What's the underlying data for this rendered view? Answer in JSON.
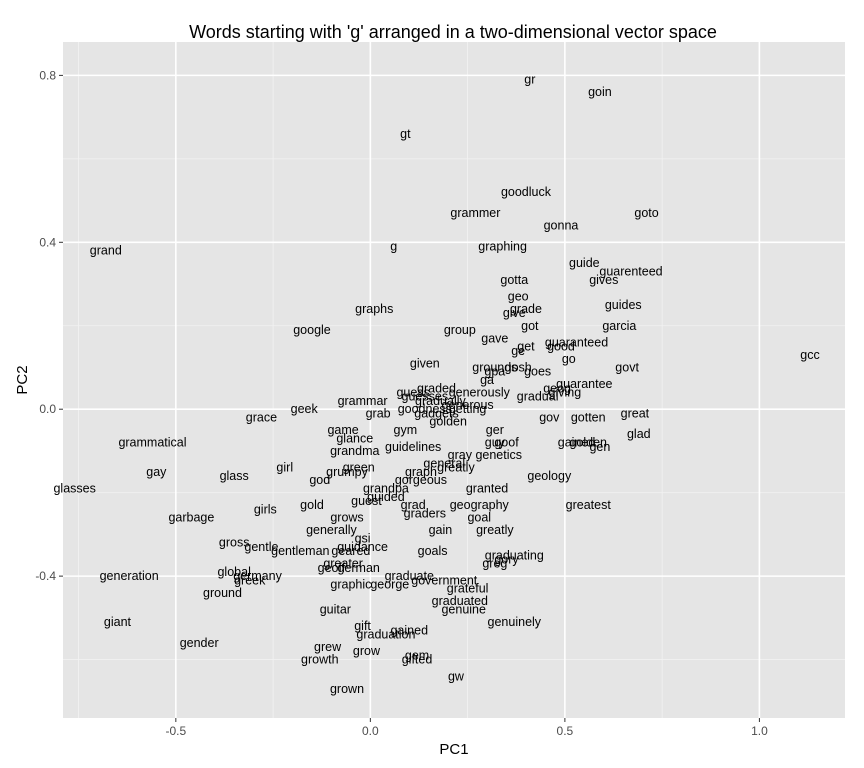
{
  "chart_data": {
    "type": "scatter",
    "title": "Words starting with 'g' arranged in a two-dimensional vector space",
    "xlabel": "PC1",
    "ylabel": "PC2",
    "xlim": [
      -0.79,
      1.22
    ],
    "ylim": [
      -0.74,
      0.88
    ],
    "x_ticks": [
      -0.5,
      0.0,
      0.5,
      1.0
    ],
    "x_tick_labels": [
      "-0.5",
      "0.0",
      "0.5",
      "1.0"
    ],
    "y_ticks": [
      -0.4,
      0.0,
      0.4,
      0.8
    ],
    "y_tick_labels": [
      "-0.4",
      "0.0",
      "0.4",
      "0.8"
    ],
    "grid": true,
    "background": "#e5e5e5",
    "grid_major_color": "#ffffff",
    "points": [
      {
        "label": "gr",
        "x": 0.41,
        "y": 0.79
      },
      {
        "label": "goin",
        "x": 0.59,
        "y": 0.76
      },
      {
        "label": "gt",
        "x": 0.09,
        "y": 0.66
      },
      {
        "label": "goodluck",
        "x": 0.4,
        "y": 0.52
      },
      {
        "label": "goto",
        "x": 0.71,
        "y": 0.47
      },
      {
        "label": "grammer",
        "x": 0.27,
        "y": 0.47
      },
      {
        "label": "gonna",
        "x": 0.49,
        "y": 0.44
      },
      {
        "label": "grand",
        "x": -0.68,
        "y": 0.38
      },
      {
        "label": "g",
        "x": 0.06,
        "y": 0.39
      },
      {
        "label": "graphing",
        "x": 0.34,
        "y": 0.39
      },
      {
        "label": "guide",
        "x": 0.55,
        "y": 0.35
      },
      {
        "label": "guarenteed",
        "x": 0.67,
        "y": 0.33
      },
      {
        "label": "gotta",
        "x": 0.37,
        "y": 0.31
      },
      {
        "label": "gives",
        "x": 0.6,
        "y": 0.31
      },
      {
        "label": "geo",
        "x": 0.38,
        "y": 0.27
      },
      {
        "label": "graphs",
        "x": 0.01,
        "y": 0.24
      },
      {
        "label": "guides",
        "x": 0.65,
        "y": 0.25
      },
      {
        "label": "grade",
        "x": 0.4,
        "y": 0.24
      },
      {
        "label": "give",
        "x": 0.37,
        "y": 0.23
      },
      {
        "label": "google",
        "x": -0.15,
        "y": 0.19
      },
      {
        "label": "group",
        "x": 0.23,
        "y": 0.19
      },
      {
        "label": "got",
        "x": 0.41,
        "y": 0.2
      },
      {
        "label": "garcia",
        "x": 0.64,
        "y": 0.2
      },
      {
        "label": "gave",
        "x": 0.32,
        "y": 0.17
      },
      {
        "label": "guaranteed",
        "x": 0.53,
        "y": 0.16
      },
      {
        "label": "get",
        "x": 0.4,
        "y": 0.15
      },
      {
        "label": "good",
        "x": 0.49,
        "y": 0.15
      },
      {
        "label": "ge",
        "x": 0.38,
        "y": 0.14
      },
      {
        "label": "gcc",
        "x": 1.13,
        "y": 0.13
      },
      {
        "label": "go",
        "x": 0.51,
        "y": 0.12
      },
      {
        "label": "given",
        "x": 0.14,
        "y": 0.11
      },
      {
        "label": "grounds",
        "x": 0.32,
        "y": 0.1
      },
      {
        "label": "gosh",
        "x": 0.38,
        "y": 0.1
      },
      {
        "label": "govt",
        "x": 0.66,
        "y": 0.1
      },
      {
        "label": "gpa",
        "x": 0.32,
        "y": 0.09
      },
      {
        "label": "goes",
        "x": 0.43,
        "y": 0.09
      },
      {
        "label": "ga",
        "x": 0.3,
        "y": 0.07
      },
      {
        "label": "guarantee",
        "x": 0.55,
        "y": 0.06
      },
      {
        "label": "graded",
        "x": 0.17,
        "y": 0.05
      },
      {
        "label": "guess",
        "x": 0.11,
        "y": 0.04
      },
      {
        "label": "generously",
        "x": 0.28,
        "y": 0.04
      },
      {
        "label": "geog",
        "x": 0.48,
        "y": 0.05
      },
      {
        "label": "gradual",
        "x": 0.43,
        "y": 0.03
      },
      {
        "label": "giving",
        "x": 0.5,
        "y": 0.04
      },
      {
        "label": "guesses",
        "x": 0.14,
        "y": 0.03
      },
      {
        "label": "gradually",
        "x": 0.18,
        "y": 0.02
      },
      {
        "label": "generous",
        "x": 0.25,
        "y": 0.01
      },
      {
        "label": "grammar",
        "x": -0.02,
        "y": 0.02
      },
      {
        "label": "geek",
        "x": -0.17,
        "y": 0.0
      },
      {
        "label": "goodness",
        "x": 0.14,
        "y": 0.0
      },
      {
        "label": "getting",
        "x": 0.25,
        "y": 0.0
      },
      {
        "label": "grab",
        "x": 0.02,
        "y": -0.01
      },
      {
        "label": "gadgets",
        "x": 0.17,
        "y": -0.01
      },
      {
        "label": "great",
        "x": 0.68,
        "y": -0.01
      },
      {
        "label": "grace",
        "x": -0.28,
        "y": -0.02
      },
      {
        "label": "gotten",
        "x": 0.56,
        "y": -0.02
      },
      {
        "label": "gov",
        "x": 0.46,
        "y": -0.02
      },
      {
        "label": "golden",
        "x": 0.2,
        "y": -0.03
      },
      {
        "label": "game",
        "x": -0.07,
        "y": -0.05
      },
      {
        "label": "gym",
        "x": 0.09,
        "y": -0.05
      },
      {
        "label": "ger",
        "x": 0.32,
        "y": -0.05
      },
      {
        "label": "glad",
        "x": 0.69,
        "y": -0.06
      },
      {
        "label": "glance",
        "x": -0.04,
        "y": -0.07
      },
      {
        "label": "goof",
        "x": 0.35,
        "y": -0.08
      },
      {
        "label": "guy",
        "x": 0.32,
        "y": -0.08
      },
      {
        "label": "gained",
        "x": 0.53,
        "y": -0.08
      },
      {
        "label": "golden2",
        "x": 0.56,
        "y": -0.08
      },
      {
        "label": "gen",
        "x": 0.59,
        "y": -0.09
      },
      {
        "label": "grammatical",
        "x": -0.56,
        "y": -0.08
      },
      {
        "label": "guidelines",
        "x": 0.11,
        "y": -0.09
      },
      {
        "label": "grandma",
        "x": -0.04,
        "y": -0.1
      },
      {
        "label": "genetics",
        "x": 0.33,
        "y": -0.11
      },
      {
        "label": "gray",
        "x": 0.23,
        "y": -0.11
      },
      {
        "label": "general",
        "x": 0.19,
        "y": -0.13
      },
      {
        "label": "girl",
        "x": -0.22,
        "y": -0.14
      },
      {
        "label": "gay",
        "x": -0.55,
        "y": -0.15
      },
      {
        "label": "green",
        "x": -0.03,
        "y": -0.14
      },
      {
        "label": "greatly2",
        "x": 0.22,
        "y": -0.14
      },
      {
        "label": "glass",
        "x": -0.35,
        "y": -0.16
      },
      {
        "label": "grumpy",
        "x": -0.06,
        "y": -0.15
      },
      {
        "label": "graph",
        "x": 0.13,
        "y": -0.15
      },
      {
        "label": "geology",
        "x": 0.46,
        "y": -0.16
      },
      {
        "label": "god",
        "x": -0.13,
        "y": -0.17
      },
      {
        "label": "gorgeous",
        "x": 0.13,
        "y": -0.17
      },
      {
        "label": "glasses",
        "x": -0.76,
        "y": -0.19
      },
      {
        "label": "grandpa",
        "x": 0.04,
        "y": -0.19
      },
      {
        "label": "granted",
        "x": 0.3,
        "y": -0.19
      },
      {
        "label": "guest",
        "x": -0.01,
        "y": -0.22
      },
      {
        "label": "guided",
        "x": 0.04,
        "y": -0.21
      },
      {
        "label": "grad",
        "x": 0.11,
        "y": -0.23
      },
      {
        "label": "geography",
        "x": 0.28,
        "y": -0.23
      },
      {
        "label": "gold",
        "x": -0.15,
        "y": -0.23
      },
      {
        "label": "girls",
        "x": -0.27,
        "y": -0.24
      },
      {
        "label": "greatest",
        "x": 0.56,
        "y": -0.23
      },
      {
        "label": "graders",
        "x": 0.14,
        "y": -0.25
      },
      {
        "label": "goal",
        "x": 0.28,
        "y": -0.26
      },
      {
        "label": "garbage",
        "x": -0.46,
        "y": -0.26
      },
      {
        "label": "grows",
        "x": -0.06,
        "y": -0.26
      },
      {
        "label": "generally",
        "x": -0.1,
        "y": -0.29
      },
      {
        "label": "gain",
        "x": 0.18,
        "y": -0.29
      },
      {
        "label": "greatly",
        "x": 0.32,
        "y": -0.29
      },
      {
        "label": "gsi",
        "x": -0.02,
        "y": -0.31
      },
      {
        "label": "guidance",
        "x": -0.02,
        "y": -0.33
      },
      {
        "label": "gross",
        "x": -0.35,
        "y": -0.32
      },
      {
        "label": "gentle",
        "x": -0.28,
        "y": -0.33
      },
      {
        "label": "gentleman",
        "x": -0.18,
        "y": -0.34
      },
      {
        "label": "geared",
        "x": -0.05,
        "y": -0.34
      },
      {
        "label": "goals",
        "x": 0.16,
        "y": -0.34
      },
      {
        "label": "graduating",
        "x": 0.37,
        "y": -0.35
      },
      {
        "label": "gory",
        "x": 0.35,
        "y": -0.36
      },
      {
        "label": "greg",
        "x": 0.32,
        "y": -0.37
      },
      {
        "label": "greater",
        "x": -0.07,
        "y": -0.37
      },
      {
        "label": "generation",
        "x": -0.62,
        "y": -0.4
      },
      {
        "label": "global",
        "x": -0.35,
        "y": -0.39
      },
      {
        "label": "geoff",
        "x": -0.1,
        "y": -0.38
      },
      {
        "label": "german",
        "x": -0.03,
        "y": -0.38
      },
      {
        "label": "germany",
        "x": -0.29,
        "y": -0.4
      },
      {
        "label": "greek",
        "x": -0.31,
        "y": -0.41
      },
      {
        "label": "graduate",
        "x": 0.1,
        "y": -0.4
      },
      {
        "label": "government",
        "x": 0.19,
        "y": -0.41
      },
      {
        "label": "george",
        "x": 0.05,
        "y": -0.42
      },
      {
        "label": "graphic",
        "x": -0.05,
        "y": -0.42
      },
      {
        "label": "grateful",
        "x": 0.25,
        "y": -0.43
      },
      {
        "label": "ground",
        "x": -0.38,
        "y": -0.44
      },
      {
        "label": "graduated",
        "x": 0.23,
        "y": -0.46
      },
      {
        "label": "guitar",
        "x": -0.09,
        "y": -0.48
      },
      {
        "label": "genuine",
        "x": 0.24,
        "y": -0.48
      },
      {
        "label": "genuinely",
        "x": 0.37,
        "y": -0.51
      },
      {
        "label": "giant",
        "x": -0.65,
        "y": -0.51
      },
      {
        "label": "gift",
        "x": -0.02,
        "y": -0.52
      },
      {
        "label": "gained2",
        "x": 0.1,
        "y": -0.53
      },
      {
        "label": "graduation",
        "x": 0.04,
        "y": -0.54
      },
      {
        "label": "gender",
        "x": -0.44,
        "y": -0.56
      },
      {
        "label": "grew",
        "x": -0.11,
        "y": -0.57
      },
      {
        "label": "grow",
        "x": -0.01,
        "y": -0.58
      },
      {
        "label": "gem",
        "x": 0.12,
        "y": -0.59
      },
      {
        "label": "gifted",
        "x": 0.12,
        "y": -0.6
      },
      {
        "label": "growth",
        "x": -0.13,
        "y": -0.6
      },
      {
        "label": "gw",
        "x": 0.22,
        "y": -0.64
      },
      {
        "label": "grown",
        "x": -0.06,
        "y": -0.67
      }
    ]
  }
}
